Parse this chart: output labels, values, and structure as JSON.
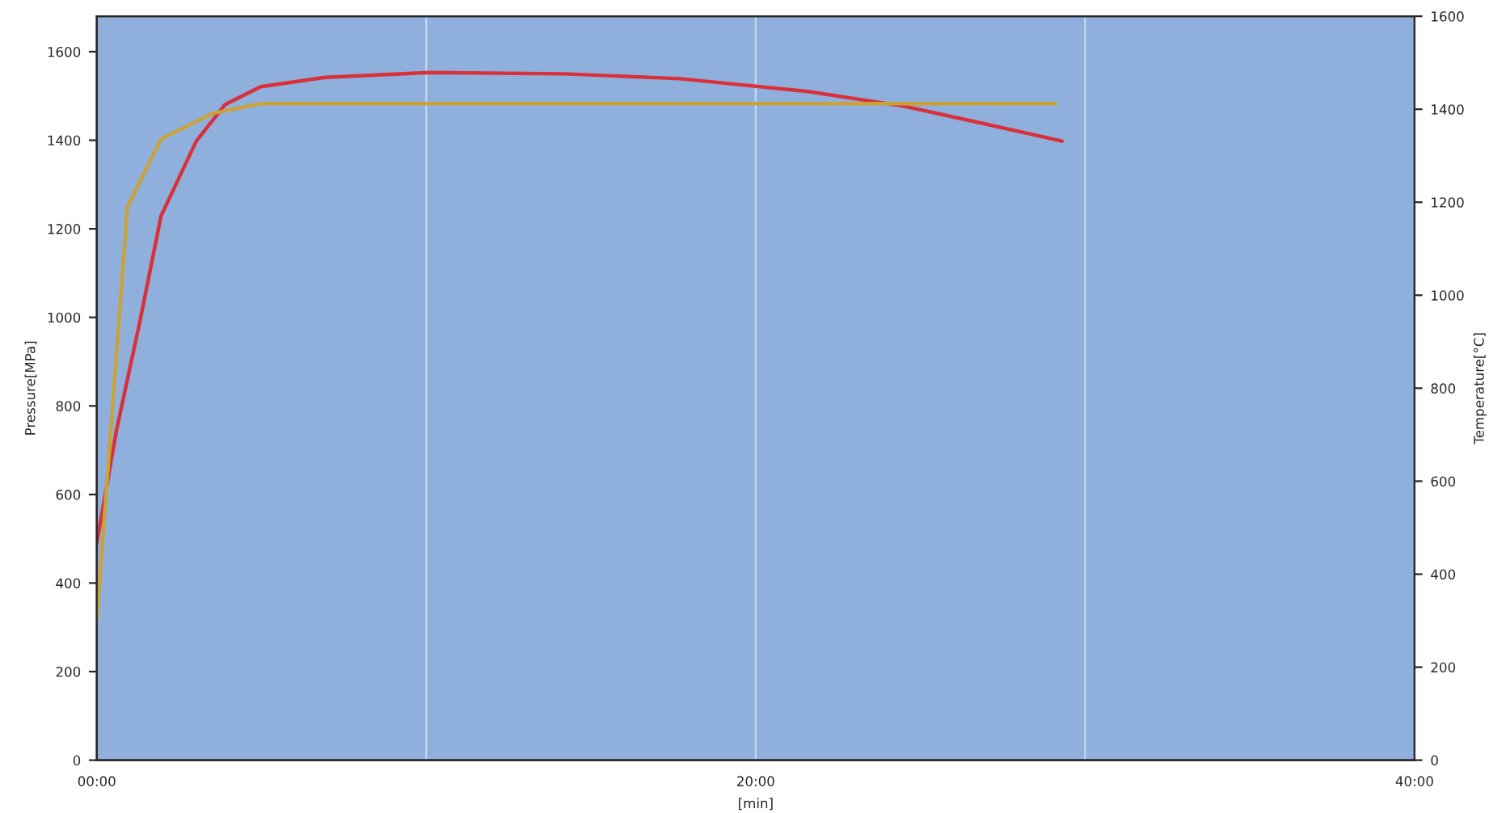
{
  "chart_data": {
    "type": "line",
    "xlabel": "[min]",
    "ylabel": "Pressure[MPa]",
    "y2label": "Temperature[°C]",
    "xlim": [
      0,
      40
    ],
    "xticks": [
      {
        "value": 0,
        "label": "00:00"
      },
      {
        "value": 10,
        "label": null
      },
      {
        "value": 20,
        "label": "20:00"
      },
      {
        "value": 30,
        "label": null
      },
      {
        "value": 40,
        "label": "40:00"
      }
    ],
    "ylim": [
      0,
      1680
    ],
    "yticks": [
      0,
      200,
      400,
      600,
      800,
      1000,
      1200,
      1400,
      1600
    ],
    "y2lim": [
      0,
      1600
    ],
    "y2ticks": [
      0,
      200,
      400,
      600,
      800,
      1000,
      1200,
      1400,
      1600
    ],
    "grid": "x",
    "series": [
      {
        "color": "#d9303a",
        "x": [
          0,
          0.59,
          1.32,
          1.95,
          3.02,
          3.9,
          4.98,
          6.93,
          10.1,
          14.2,
          17.7,
          21.6,
          24.5,
          26.9,
          29.3
        ],
        "values": [
          490,
          742,
          995,
          1229,
          1398,
          1481,
          1521,
          1542,
          1553,
          1550,
          1539,
          1510,
          1477,
          1438,
          1398
        ]
      },
      {
        "color": "#c9a33a",
        "axis": "y2",
        "x": [
          0,
          0.93,
          1.95,
          3.51,
          4.98,
          29.1
        ],
        "values": [
          301,
          1190,
          1336,
          1391,
          1412,
          1412
        ]
      }
    ]
  }
}
